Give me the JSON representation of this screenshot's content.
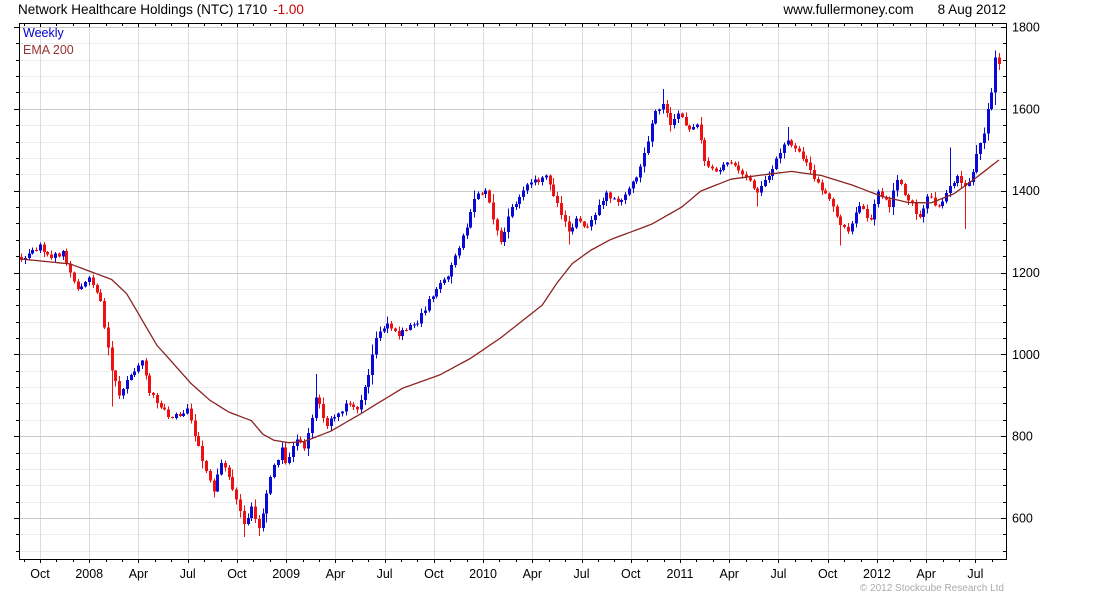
{
  "header": {
    "title": "Network Healthcare Holdings (NTC) 1710",
    "change": "-1.00",
    "website": "www.fullermoney.com",
    "date": "8 Aug 2012"
  },
  "legend": {
    "timeframe": "Weekly",
    "ema": "EMA 200"
  },
  "footer": {
    "copyright": "© 2012 Stockcube Research Ltd"
  },
  "chart_data": {
    "type": "candlestick",
    "title": "Network Healthcare Holdings (NTC)",
    "timeframe": "weekly",
    "last_price": 1710,
    "change": -1.0,
    "legend_position": "top-left-inside",
    "grid": "on",
    "y_axis": {
      "side": "right",
      "scale": "linear",
      "tick_labels": [
        1800,
        1600,
        1400,
        1200,
        1000,
        800,
        600
      ],
      "major_step": 200,
      "minor_step": 40,
      "visible_range": [
        500,
        1810
      ]
    },
    "x_axis": {
      "tick_labels": [
        "Oct",
        "2008",
        "Apr",
        "Jul",
        "Oct",
        "2009",
        "Apr",
        "Jul",
        "Oct",
        "2010",
        "Apr",
        "Jul",
        "Oct",
        "2011",
        "Apr",
        "Jul",
        "Oct",
        "2012",
        "Apr",
        "Jul"
      ],
      "weeks": 260,
      "start": "late Aug 2007",
      "end": "early Aug 2012"
    },
    "price_keypoints": [
      [
        0,
        1230
      ],
      [
        3,
        1255
      ],
      [
        5,
        1268
      ],
      [
        8,
        1235
      ],
      [
        11,
        1252
      ],
      [
        13,
        1200
      ],
      [
        15,
        1160
      ],
      [
        18,
        1188
      ],
      [
        21,
        1130
      ],
      [
        24,
        960
      ],
      [
        26,
        900
      ],
      [
        29,
        950
      ],
      [
        32,
        985
      ],
      [
        34,
        905
      ],
      [
        37,
        870
      ],
      [
        40,
        845
      ],
      [
        44,
        868
      ],
      [
        46,
        800
      ],
      [
        49,
        715
      ],
      [
        51,
        665
      ],
      [
        53,
        735
      ],
      [
        55,
        700
      ],
      [
        57,
        645
      ],
      [
        59,
        585
      ],
      [
        61,
        628
      ],
      [
        63,
        575
      ],
      [
        65,
        660
      ],
      [
        66,
        700
      ],
      [
        69,
        772
      ],
      [
        70,
        735
      ],
      [
        73,
        792
      ],
      [
        75,
        770
      ],
      [
        77,
        845
      ],
      [
        78,
        895
      ],
      [
        81,
        825
      ],
      [
        84,
        855
      ],
      [
        86,
        880
      ],
      [
        89,
        865
      ],
      [
        92,
        950
      ],
      [
        94,
        1040
      ],
      [
        97,
        1075
      ],
      [
        100,
        1045
      ],
      [
        102,
        1060
      ],
      [
        105,
        1075
      ],
      [
        108,
        1135
      ],
      [
        110,
        1160
      ],
      [
        113,
        1190
      ],
      [
        116,
        1260
      ],
      [
        118,
        1310
      ],
      [
        120,
        1380
      ],
      [
        123,
        1400
      ],
      [
        125,
        1330
      ],
      [
        127,
        1275
      ],
      [
        130,
        1360
      ],
      [
        133,
        1400
      ],
      [
        135,
        1420
      ],
      [
        139,
        1437
      ],
      [
        142,
        1370
      ],
      [
        145,
        1300
      ],
      [
        147,
        1332
      ],
      [
        150,
        1312
      ],
      [
        153,
        1365
      ],
      [
        155,
        1395
      ],
      [
        158,
        1372
      ],
      [
        161,
        1405
      ],
      [
        163,
        1432
      ],
      [
        166,
        1520
      ],
      [
        168,
        1595
      ],
      [
        170,
        1612
      ],
      [
        172,
        1560
      ],
      [
        174,
        1588
      ],
      [
        177,
        1550
      ],
      [
        179,
        1562
      ],
      [
        181,
        1472
      ],
      [
        184,
        1447
      ],
      [
        188,
        1468
      ],
      [
        191,
        1440
      ],
      [
        195,
        1396
      ],
      [
        198,
        1436
      ],
      [
        201,
        1492
      ],
      [
        203,
        1522
      ],
      [
        206,
        1496
      ],
      [
        209,
        1450
      ],
      [
        211,
        1420
      ],
      [
        214,
        1380
      ],
      [
        217,
        1316
      ],
      [
        219,
        1300
      ],
      [
        222,
        1362
      ],
      [
        225,
        1330
      ],
      [
        227,
        1398
      ],
      [
        230,
        1360
      ],
      [
        232,
        1426
      ],
      [
        235,
        1376
      ],
      [
        238,
        1336
      ],
      [
        240,
        1386
      ],
      [
        243,
        1362
      ],
      [
        246,
        1412
      ],
      [
        248,
        1436
      ],
      [
        250,
        1412
      ],
      [
        252,
        1446
      ],
      [
        253,
        1490
      ],
      [
        254,
        1516
      ],
      [
        255,
        1540
      ],
      [
        256,
        1600
      ],
      [
        257,
        1640
      ],
      [
        258,
        1726
      ],
      [
        259,
        1710
      ]
    ],
    "wick_overrides": [
      {
        "week": 24,
        "low": 872
      },
      {
        "week": 59,
        "low": 554
      },
      {
        "week": 63,
        "low": 556
      },
      {
        "week": 78,
        "high": 952
      },
      {
        "week": 97,
        "high": 1092
      },
      {
        "week": 120,
        "high": 1401
      },
      {
        "week": 145,
        "low": 1268
      },
      {
        "week": 170,
        "high": 1648
      },
      {
        "week": 195,
        "low": 1361
      },
      {
        "week": 203,
        "high": 1556
      },
      {
        "week": 217,
        "low": 1266
      },
      {
        "week": 246,
        "high": 1506
      },
      {
        "week": 250,
        "low": 1306
      },
      {
        "week": 258,
        "high": 1742
      },
      {
        "week": 259,
        "high": 1736,
        "low": 1695
      }
    ],
    "ema_keypoints": [
      [
        0,
        1233
      ],
      [
        13,
        1221
      ],
      [
        24,
        1183
      ],
      [
        28,
        1148
      ],
      [
        32,
        1085
      ],
      [
        36,
        1022
      ],
      [
        40,
        981
      ],
      [
        45,
        929
      ],
      [
        50,
        888
      ],
      [
        55,
        859
      ],
      [
        61,
        838
      ],
      [
        64,
        805
      ],
      [
        67,
        790
      ],
      [
        71,
        784
      ],
      [
        75,
        787
      ],
      [
        82,
        812
      ],
      [
        90,
        855
      ],
      [
        101,
        917
      ],
      [
        111,
        950
      ],
      [
        119,
        990
      ],
      [
        127,
        1040
      ],
      [
        138,
        1120
      ],
      [
        142,
        1175
      ],
      [
        146,
        1222
      ],
      [
        151,
        1255
      ],
      [
        156,
        1280
      ],
      [
        167,
        1318
      ],
      [
        175,
        1360
      ],
      [
        180,
        1399
      ],
      [
        188,
        1428
      ],
      [
        196,
        1438
      ],
      [
        204,
        1447
      ],
      [
        212,
        1437
      ],
      [
        220,
        1414
      ],
      [
        228,
        1386
      ],
      [
        235,
        1371
      ],
      [
        241,
        1370
      ],
      [
        247,
        1392
      ],
      [
        253,
        1432
      ],
      [
        259,
        1475
      ]
    ],
    "colors": {
      "up": "#0a0ad8",
      "down": "#ee1111",
      "ema": "#8b2323",
      "grid_minor": "#ececec",
      "grid_major": "#c9c9c9",
      "grid_vertical": "#dcdcdc",
      "axis": "#000000",
      "title": "#000000",
      "change": "#cc0000",
      "legend_timeframe": "#0000cc",
      "legend_ema": "#993333",
      "copyright": "#aaaaaa"
    },
    "render": {
      "seed": 77,
      "jitter": 8,
      "wick_base": 6,
      "wick_slope": 0.35,
      "body_width": 3
    }
  }
}
